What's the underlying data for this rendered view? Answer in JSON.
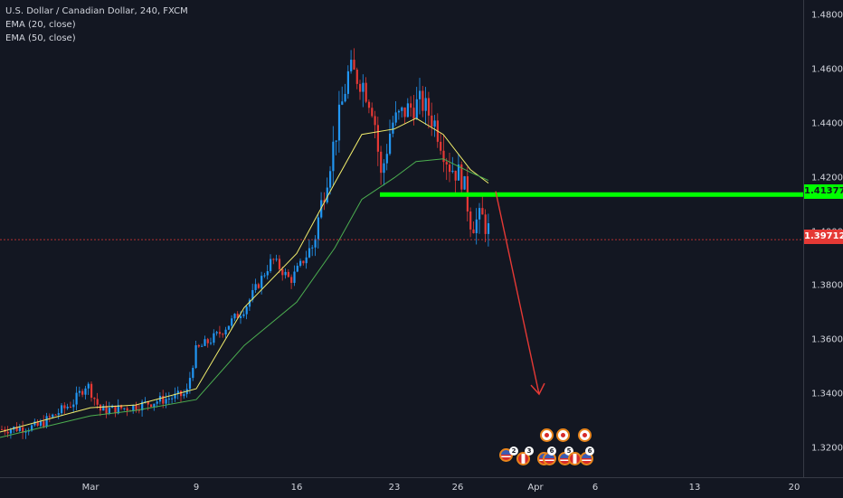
{
  "legend": {
    "title": "U.S. Dollar / Canadian Dollar, 240, FXCM",
    "ema1": "EMA (20, close)",
    "ema2": "EMA (50, close)"
  },
  "price_axis": {
    "ticks": [
      "1.48000",
      "1.46000",
      "1.44000",
      "1.42000",
      "1.40000",
      "1.38000",
      "1.36000",
      "1.34000",
      "1.32000"
    ],
    "tick_values": [
      1.48,
      1.46,
      1.44,
      1.42,
      1.4,
      1.38,
      1.36,
      1.34,
      1.32
    ]
  },
  "time_axis": {
    "ticks": [
      "Mar",
      "9",
      "16",
      "23",
      "26",
      "Apr",
      "6",
      "13",
      "20"
    ]
  },
  "price_labels": {
    "resistance": "1.41377",
    "current": "1.39712"
  },
  "colors": {
    "background": "#131722",
    "up_candle": "#2196f3",
    "down_candle": "#e53935",
    "ema20": "#f2ee6c",
    "ema50": "#4caf50",
    "resistance": "#00ff00",
    "arrow": "#e53935",
    "current_tag": "#e53935"
  },
  "events": {
    "badges": [
      "2",
      "3",
      "6",
      "5",
      "6"
    ]
  },
  "chart_data": {
    "type": "line",
    "title": "U.S. Dollar / Canadian Dollar, 240, FXCM",
    "ylim": [
      1.312,
      1.485
    ],
    "grid": false,
    "series": [
      {
        "name": "EMA (20, close)",
        "x": [
          "Feb 24",
          "Mar 2",
          "Mar 6",
          "Mar 9",
          "Mar 12",
          "Mar 16",
          "Mar 18",
          "Mar 20",
          "Mar 23",
          "Mar 24",
          "Mar 25",
          "Mar 26",
          "Mar 27"
        ],
        "values": [
          1.326,
          1.335,
          1.336,
          1.342,
          1.372,
          1.392,
          1.418,
          1.436,
          1.438,
          1.442,
          1.436,
          1.423,
          1.418
        ]
      },
      {
        "name": "EMA (50, close)",
        "x": [
          "Feb 24",
          "Mar 2",
          "Mar 6",
          "Mar 9",
          "Mar 12",
          "Mar 16",
          "Mar 18",
          "Mar 20",
          "Mar 23",
          "Mar 24",
          "Mar 25",
          "Mar 26",
          "Mar 27"
        ],
        "values": [
          1.324,
          1.332,
          1.334,
          1.338,
          1.358,
          1.374,
          1.394,
          1.412,
          1.42,
          1.426,
          1.427,
          1.422,
          1.419
        ]
      }
    ],
    "horizontal_lines": [
      {
        "value": 1.41377
      },
      {
        "value": 1.39712
      }
    ],
    "annotation": {
      "type": "arrow",
      "from": 1.415,
      "to": 1.34
    }
  }
}
